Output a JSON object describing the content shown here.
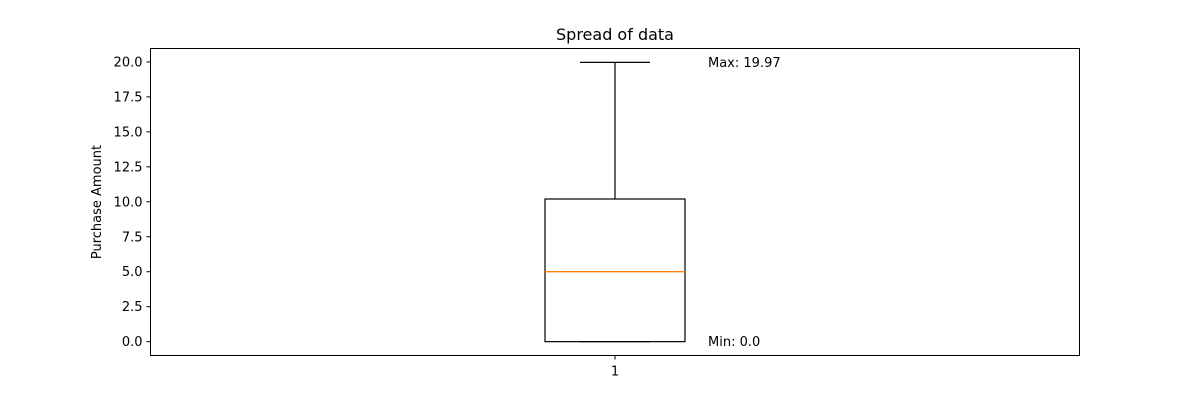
{
  "chart_data": {
    "type": "box",
    "title": "Spread of data",
    "xlabel": "",
    "ylabel": "Purchase Amount",
    "categories": [
      "1"
    ],
    "ylim": [
      -0.99,
      20.96
    ],
    "yticks": [
      "0.0",
      "2.5",
      "5.0",
      "7.5",
      "10.0",
      "12.5",
      "15.0",
      "17.5",
      "20.0"
    ],
    "box": {
      "whisker_low": 0.0,
      "q1": 0.0,
      "median": 5.0,
      "q3": 10.2,
      "whisker_high": 19.97
    },
    "annotations": [
      {
        "text": "Max: 19.97",
        "y": 19.97
      },
      {
        "text": "Min: 0.0",
        "y": 0.0
      }
    ],
    "colors": {
      "box": "#000000",
      "median": "#ff7f0e"
    },
    "grid": false,
    "legend": "none"
  }
}
